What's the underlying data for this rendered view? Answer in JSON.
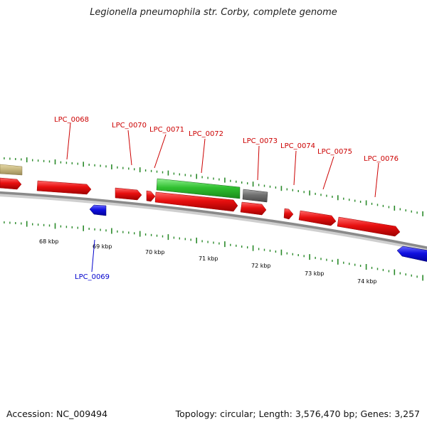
{
  "title": "Legionella pneumophila str. Corby, complete genome",
  "footer": {
    "accession": "Accession: NC_009494",
    "summary": "Topology: circular; Length: 3,576,470 bp; Genes: 3,257"
  },
  "colors": {
    "backbone": "#8a8a8a",
    "tick": "#2a8a2a",
    "gene_red": "#e81010",
    "gene_blue": "#1010e0",
    "gene_green": "#30c030",
    "gene_gray": "#707070",
    "gene_tan": "#c8b880",
    "label_red": "#cc0000",
    "label_blue": "#0000cc"
  },
  "ruler": {
    "labels": [
      "68 kbp",
      "69 kbp",
      "70 kbp",
      "71 kbp",
      "72 kbp",
      "73 kbp",
      "74 kbp"
    ]
  },
  "genes": [
    {
      "id": "unlabeled-tan",
      "label": "",
      "strand": "+",
      "color": "tan"
    },
    {
      "id": "unlabeled-red-left",
      "label": "",
      "strand": "+",
      "color": "red"
    },
    {
      "id": "LPC_0068",
      "label": "LPC_0068",
      "strand": "+",
      "color": "red"
    },
    {
      "id": "LPC_0069",
      "label": "LPC_0069",
      "strand": "-",
      "color": "blue"
    },
    {
      "id": "LPC_0070",
      "label": "LPC_0070",
      "strand": "+",
      "color": "red"
    },
    {
      "id": "LPC_0071",
      "label": "LPC_0071",
      "strand": "+",
      "color": "red"
    },
    {
      "id": "LPC_0072",
      "label": "LPC_0072",
      "strand": "+",
      "color": "red"
    },
    {
      "id": "LPC_0072-rna",
      "label": "",
      "strand": "+",
      "color": "green"
    },
    {
      "id": "LPC_0073",
      "label": "LPC_0073",
      "strand": "+",
      "color": "red"
    },
    {
      "id": "LPC_0073-gray",
      "label": "",
      "strand": "+",
      "color": "gray"
    },
    {
      "id": "LPC_0074",
      "label": "LPC_0074",
      "strand": "+",
      "color": "red"
    },
    {
      "id": "LPC_0075",
      "label": "LPC_0075",
      "strand": "+",
      "color": "red"
    },
    {
      "id": "LPC_0076",
      "label": "LPC_0076",
      "strand": "+",
      "color": "red"
    },
    {
      "id": "unlabeled-blue-right",
      "label": "",
      "strand": "-",
      "color": "blue"
    }
  ]
}
